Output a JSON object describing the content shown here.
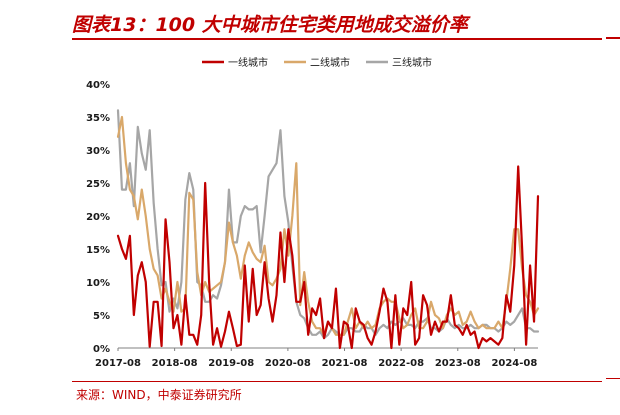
{
  "title": "图表13：100 大中城市住宅类用地成交溢价率",
  "source": "来源：WIND，中泰证券研究所",
  "colors": {
    "accent": "#c00000",
    "tier1": "#c00000",
    "tier2": "#d9a86a",
    "tier3": "#a6a6a6"
  },
  "chart_data": {
    "type": "line",
    "title": "",
    "xlabel": "",
    "ylabel": "",
    "ylim": [
      0,
      40
    ],
    "y_unit": "%",
    "y_ticks": [
      "0%",
      "5%",
      "10%",
      "15%",
      "20%",
      "25%",
      "30%",
      "35%",
      "40%"
    ],
    "x_ticks": [
      "2017-08",
      "2018-08",
      "2019-08",
      "2020-08",
      "2021-08",
      "2022-08",
      "2023-08",
      "2024-08"
    ],
    "x_start": "2017-08",
    "x_end": "2025-01",
    "legend_position": "top",
    "grid": false,
    "series": [
      {
        "name": "一线城市",
        "color": "#c00000",
        "values": [
          17.0,
          15.0,
          13.5,
          17.0,
          5.0,
          11.0,
          13.0,
          10.0,
          0.2,
          7.0,
          7.0,
          0.3,
          19.5,
          13.0,
          3.0,
          5.0,
          0.5,
          8.0,
          2.0,
          2.0,
          0.5,
          5.0,
          25.0,
          10.0,
          0.5,
          3.0,
          0.2,
          2.5,
          5.5,
          3.0,
          0.3,
          0.5,
          12.5,
          4.0,
          12.0,
          5.0,
          6.5,
          13.0,
          7.5,
          4.0,
          8.0,
          17.5,
          10.0,
          18.0,
          14.0,
          7.0,
          7.0,
          10.0,
          2.0,
          6.0,
          5.0,
          7.5,
          1.5,
          4.0,
          3.0,
          9.0,
          0.0,
          4.0,
          3.5,
          0.0,
          6.0,
          4.0,
          3.5,
          1.5,
          0.5,
          2.5,
          5.5,
          9.0,
          7.0,
          0.0,
          8.0,
          0.5,
          6.0,
          5.0,
          10.0,
          0.5,
          1.5,
          8.0,
          6.5,
          2.0,
          4.0,
          2.5,
          4.0,
          4.0,
          8.0,
          3.5,
          3.0,
          2.0,
          3.5,
          2.0,
          2.5,
          0.0,
          1.5,
          1.0,
          1.5,
          1.0,
          0.5,
          1.5,
          8.0,
          5.5,
          12.5,
          27.5,
          15.0,
          0.5,
          12.5,
          4.0,
          23.0
        ]
      },
      {
        "name": "二线城市",
        "color": "#d9a86a",
        "values": [
          32.0,
          35.0,
          28.0,
          24.0,
          23.0,
          19.5,
          24.0,
          20.0,
          15.0,
          12.0,
          11.0,
          7.5,
          9.0,
          7.0,
          5.5,
          10.0,
          5.5,
          6.0,
          23.5,
          22.5,
          11.5,
          8.0,
          10.0,
          8.5,
          9.0,
          9.5,
          10.0,
          13.0,
          19.0,
          16.0,
          14.0,
          10.5,
          14.0,
          16.0,
          14.5,
          13.5,
          13.0,
          15.5,
          10.0,
          9.5,
          10.5,
          12.0,
          18.0,
          14.0,
          20.0,
          28.0,
          6.5,
          11.5,
          7.0,
          4.0,
          3.0,
          3.0,
          2.0,
          4.0,
          3.0,
          2.0,
          2.0,
          2.0,
          4.0,
          6.0,
          3.0,
          4.0,
          3.0,
          4.0,
          3.0,
          3.5,
          6.0,
          7.0,
          7.5,
          7.0,
          7.0,
          4.5,
          3.0,
          3.5,
          5.0,
          6.0,
          3.0,
          3.0,
          4.0,
          7.0,
          5.0,
          4.5,
          3.0,
          5.0,
          6.0,
          5.0,
          5.5,
          3.5,
          4.0,
          5.5,
          4.0,
          3.0,
          3.5,
          3.0,
          3.0,
          3.0,
          4.0,
          3.0,
          7.0,
          12.0,
          18.0,
          18.0,
          12.0,
          8.0,
          7.0,
          5.0,
          6.0
        ]
      },
      {
        "name": "三线城市",
        "color": "#a6a6a6",
        "values": [
          36.0,
          24.0,
          24.0,
          28.0,
          21.5,
          33.5,
          29.5,
          27.0,
          33.0,
          22.0,
          15.0,
          9.5,
          10.0,
          5.5,
          7.5,
          6.0,
          10.0,
          22.5,
          26.5,
          24.0,
          10.0,
          9.5,
          7.0,
          7.0,
          8.0,
          7.5,
          9.5,
          13.0,
          24.0,
          16.0,
          16.0,
          20.0,
          21.5,
          21.0,
          21.0,
          21.5,
          14.5,
          20.0,
          26.0,
          27.0,
          28.0,
          33.0,
          23.0,
          19.0,
          12.5,
          7.0,
          5.0,
          4.5,
          3.0,
          2.0,
          2.0,
          2.5,
          1.5,
          2.0,
          3.0,
          2.5,
          2.0,
          2.0,
          3.0,
          3.0,
          2.5,
          2.5,
          3.5,
          3.0,
          3.0,
          2.0,
          3.0,
          3.5,
          3.0,
          4.0,
          3.5,
          4.0,
          4.5,
          3.5,
          3.5,
          3.0,
          4.0,
          4.0,
          4.5,
          3.0,
          3.0,
          2.5,
          3.0,
          4.5,
          3.5,
          3.0,
          3.5,
          3.0,
          3.0,
          3.5,
          3.0,
          3.0,
          3.5,
          3.5,
          3.0,
          3.0,
          2.5,
          3.0,
          4.0,
          3.5,
          4.0,
          5.0,
          6.0,
          3.0,
          3.0,
          2.5,
          2.5
        ]
      }
    ]
  }
}
